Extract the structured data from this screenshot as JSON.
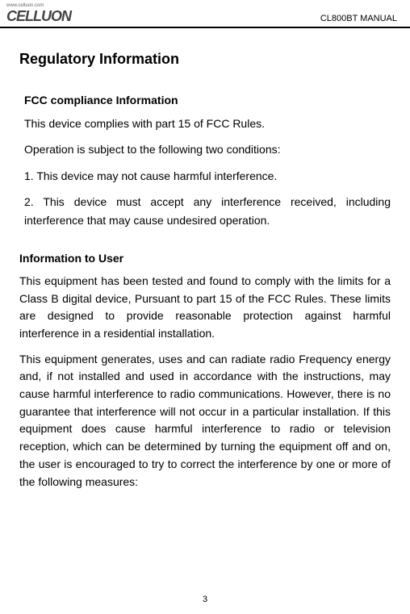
{
  "header": {
    "logo_url": "www.celluon.com",
    "logo_text": "CELLUON",
    "manual_label": "CL800BT MANUAL"
  },
  "content": {
    "main_title": "Regulatory Information",
    "fcc_section": {
      "title": "FCC compliance Information",
      "p1": "This device complies with part 15 of FCC Rules.",
      "p2": "Operation is subject to the following two conditions:",
      "p3": "1. This device may not cause harmful interference.",
      "p4": "2. This device must accept any interference received, including interference that may cause undesired operation."
    },
    "user_section": {
      "title": "Information to User",
      "p1": "This equipment has been tested and found to comply with the limits for a Class B digital device, Pursuant to part 15 of the FCC Rules. These limits are designed to provide reasonable protection against harmful interference in a residential installation.",
      "p2": "This equipment generates, uses and can radiate radio Frequency energy and, if not installed and used in accordance with the instructions, may cause harmful interference to radio communications. However, there is no guarantee that interference will not occur in a particular installation. If this equipment does cause harmful interference to radio or television reception, which can be determined by turning the equipment off and on, the user is encouraged to try to correct the interference by one or more of the following measures:"
    }
  },
  "page_number": "3"
}
